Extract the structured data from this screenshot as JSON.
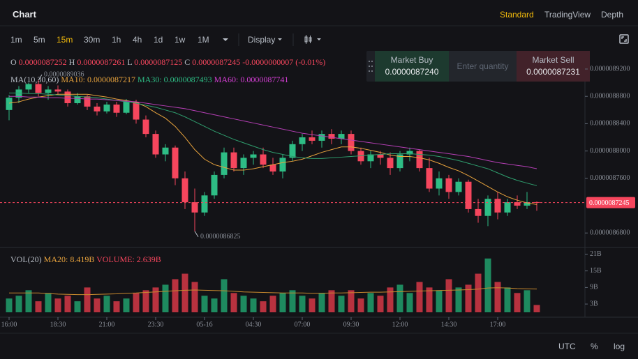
{
  "ui": {
    "title": "Chart",
    "views": [
      "Standard",
      "TradingView",
      "Depth"
    ],
    "intervals": [
      "1m",
      "5m",
      "15m",
      "30m",
      "1h",
      "4h",
      "1d",
      "1w",
      "1M"
    ],
    "display": "Display",
    "ohlc": [
      {
        "label": "O",
        "value": "0.0000087252"
      },
      {
        "label": "H",
        "value": "0.0000087261"
      },
      {
        "label": "L",
        "value": "0.0000087125"
      },
      {
        "label": "C",
        "value": "0.0000087245"
      }
    ],
    "change": "-0.0000000007 (-0.01%)",
    "ma_header": [
      "MA(10,30,60)",
      "MA10: 0.0000087217",
      "MA30: 0.0000087493",
      "MA60: 0.0000087741"
    ],
    "buy": {
      "label": "Market Buy",
      "price": "0.0000087240"
    },
    "quantity": "Enter quantity",
    "sell": {
      "label": "Market Sell",
      "price": "0.0000087231"
    },
    "vol_header": [
      "VOL(20)",
      "MA20: 8.419B",
      "VOLUME: 2.639B"
    ],
    "footer": [
      "UTC",
      "%",
      "log"
    ]
  },
  "chart_data": [
    {
      "type": "candlestick",
      "x": [
        "16:00",
        null,
        null,
        null,
        null,
        "18:30",
        null,
        null,
        null,
        null,
        "21:00",
        null,
        null,
        null,
        null,
        "23:30",
        null,
        null,
        null,
        null,
        "05-16",
        null,
        null,
        null,
        null,
        "04:30",
        null,
        null,
        null,
        null,
        "07:00",
        null,
        null,
        null,
        null,
        "09:30",
        null,
        null,
        null,
        null,
        "12:00",
        null,
        null,
        null,
        null,
        "14:30",
        null,
        null,
        null,
        null,
        "17:00",
        null,
        null,
        null,
        null
      ],
      "open": [
        8.86e-06,
        8.878e-06,
        8.89e-06,
        8.898e-06,
        8.885e-06,
        8.89e-06,
        8.887e-06,
        8.87e-06,
        8.88e-06,
        8.865e-06,
        8.858e-06,
        8.868e-06,
        8.856e-06,
        8.872e-06,
        8.846e-06,
        8.825e-06,
        8.795e-06,
        8.805e-06,
        8.76e-06,
        8.725e-06,
        8.71e-06,
        8.735e-06,
        8.765e-06,
        8.798e-06,
        8.775e-06,
        8.79e-06,
        8.795e-06,
        8.78e-06,
        8.77e-06,
        8.79e-06,
        8.81e-06,
        8.82e-06,
        8.815e-06,
        8.825e-06,
        8.818e-06,
        8.825e-06,
        8.8e-06,
        8.785e-06,
        8.795e-06,
        8.79e-06,
        8.775e-06,
        8.795e-06,
        8.8e-06,
        8.775e-06,
        8.745e-06,
        8.76e-06,
        8.74e-06,
        8.755e-06,
        8.715e-06,
        8.705e-06,
        8.73e-06,
        8.71e-06,
        8.725e-06,
        8.72e-06,
        8.7252e-06
      ],
      "high": [
        8.882e-06,
        8.895e-06,
        8.9e-06,
        8.9036e-06,
        8.895e-06,
        8.896e-06,
        8.89e-06,
        8.885e-06,
        8.882e-06,
        8.87e-06,
        8.872e-06,
        8.872e-06,
        8.876e-06,
        8.875e-06,
        8.852e-06,
        8.83e-06,
        8.81e-06,
        8.808e-06,
        8.77e-06,
        8.745e-06,
        8.74e-06,
        8.77e-06,
        8.805e-06,
        8.805e-06,
        8.795e-06,
        8.8e-06,
        8.805e-06,
        8.79e-06,
        8.795e-06,
        8.815e-06,
        8.825e-06,
        8.83e-06,
        8.83e-06,
        8.832e-06,
        8.83e-06,
        8.83e-06,
        8.805e-06,
        8.8e-06,
        8.8e-06,
        8.798e-06,
        8.8e-06,
        8.805e-06,
        8.802e-06,
        8.79e-06,
        8.77e-06,
        8.765e-06,
        8.76e-06,
        8.758e-06,
        8.73e-06,
        8.735e-06,
        8.74e-06,
        8.73e-06,
        8.735e-06,
        8.74e-06,
        8.7261e-06
      ],
      "low": [
        8.845e-06,
        8.87e-06,
        8.885e-06,
        8.88e-06,
        8.875e-06,
        8.882e-06,
        8.865e-06,
        8.868e-06,
        8.86e-06,
        8.852e-06,
        8.855e-06,
        8.85e-06,
        8.854e-06,
        8.84e-06,
        8.82e-06,
        8.79e-06,
        8.785e-06,
        8.75e-06,
        8.715e-06,
        8.6825e-06,
        8.705e-06,
        8.73e-06,
        8.76e-06,
        8.77e-06,
        8.765e-06,
        8.78e-06,
        8.775e-06,
        8.765e-06,
        8.76e-06,
        8.785e-06,
        8.8e-06,
        8.81e-06,
        8.805e-06,
        8.81e-06,
        8.81e-06,
        8.795e-06,
        8.78e-06,
        8.775e-06,
        8.78e-06,
        8.765e-06,
        8.77e-06,
        8.785e-06,
        8.77e-06,
        8.74e-06,
        8.735e-06,
        8.73e-06,
        8.735e-06,
        8.71e-06,
        8.695e-06,
        8.69e-06,
        8.7e-06,
        8.705e-06,
        8.715e-06,
        8.715e-06,
        8.7125e-06
      ],
      "close": [
        8.878e-06,
        8.89e-06,
        8.898e-06,
        8.885e-06,
        8.89e-06,
        8.887e-06,
        8.87e-06,
        8.88e-06,
        8.865e-06,
        8.858e-06,
        8.868e-06,
        8.856e-06,
        8.872e-06,
        8.846e-06,
        8.825e-06,
        8.795e-06,
        8.805e-06,
        8.76e-06,
        8.725e-06,
        8.71e-06,
        8.735e-06,
        8.765e-06,
        8.798e-06,
        8.775e-06,
        8.79e-06,
        8.795e-06,
        8.78e-06,
        8.77e-06,
        8.79e-06,
        8.81e-06,
        8.82e-06,
        8.815e-06,
        8.825e-06,
        8.818e-06,
        8.825e-06,
        8.8e-06,
        8.785e-06,
        8.795e-06,
        8.79e-06,
        8.775e-06,
        8.795e-06,
        8.8e-06,
        8.775e-06,
        8.745e-06,
        8.76e-06,
        8.74e-06,
        8.755e-06,
        8.715e-06,
        8.705e-06,
        8.73e-06,
        8.71e-06,
        8.725e-06,
        8.72e-06,
        8.7252e-06,
        8.7245e-06
      ],
      "up_color": "#2ebd85",
      "down_color": "#f6465d",
      "lines": [
        {
          "color": "#e8a33d",
          "values": [
            8.87e-06,
            8.872e-06,
            8.876e-06,
            8.879e-06,
            8.881e-06,
            8.883e-06,
            8.883e-06,
            8.883e-06,
            8.883e-06,
            8.881e-06,
            8.879e-06,
            8.876e-06,
            8.874e-06,
            8.871e-06,
            8.865e-06,
            8.856e-06,
            8.848e-06,
            8.836e-06,
            8.82e-06,
            8.802e-06,
            8.788e-06,
            8.78e-06,
            8.776e-06,
            8.772e-06,
            8.772e-06,
            8.774e-06,
            8.777e-06,
            8.78e-06,
            8.783e-06,
            8.785e-06,
            8.788e-06,
            8.793e-06,
            8.798e-06,
            8.802e-06,
            8.806e-06,
            8.806e-06,
            8.804e-06,
            8.801e-06,
            8.798e-06,
            8.794e-06,
            8.792e-06,
            8.792e-06,
            8.79e-06,
            8.787e-06,
            8.782e-06,
            8.776e-06,
            8.771e-06,
            8.764e-06,
            8.756e-06,
            8.748e-06,
            8.74e-06,
            8.733e-06,
            8.728e-06,
            8.724e-06,
            8.7217e-06
          ]
        },
        {
          "color": "#2f9e6e",
          "values": [
            8.885e-06,
            8.885e-06,
            8.884e-06,
            8.884e-06,
            8.883e-06,
            8.882e-06,
            8.881e-06,
            8.88e-06,
            8.879e-06,
            8.878e-06,
            8.876e-06,
            8.874e-06,
            8.872e-06,
            8.87e-06,
            8.867e-06,
            8.864e-06,
            8.86e-06,
            8.856e-06,
            8.85e-06,
            8.843e-06,
            8.836e-06,
            8.829e-06,
            8.823e-06,
            8.817e-06,
            8.812e-06,
            8.807e-06,
            8.802e-06,
            8.798e-06,
            8.795e-06,
            8.792e-06,
            8.79e-06,
            8.789e-06,
            8.789e-06,
            8.79e-06,
            8.791e-06,
            8.792e-06,
            8.793e-06,
            8.794e-06,
            8.795e-06,
            8.796e-06,
            8.796e-06,
            8.796e-06,
            8.795e-06,
            8.794e-06,
            8.792e-06,
            8.789e-06,
            8.786e-06,
            8.782e-06,
            8.778e-06,
            8.774e-06,
            8.768e-06,
            8.762e-06,
            8.757e-06,
            8.753e-06,
            8.7493e-06
          ]
        },
        {
          "color": "#b53fb5",
          "values": [
            8.88e-06,
            8.88e-06,
            8.879e-06,
            8.879e-06,
            8.878e-06,
            8.878e-06,
            8.877e-06,
            8.877e-06,
            8.876e-06,
            8.876e-06,
            8.875e-06,
            8.874e-06,
            8.873e-06,
            8.872e-06,
            8.87e-06,
            8.868e-06,
            8.866e-06,
            8.864e-06,
            8.862e-06,
            8.859e-06,
            8.856e-06,
            8.853e-06,
            8.85e-06,
            8.847e-06,
            8.844e-06,
            8.841e-06,
            8.838e-06,
            8.835e-06,
            8.832e-06,
            8.829e-06,
            8.826e-06,
            8.824e-06,
            8.822e-06,
            8.82e-06,
            8.818e-06,
            8.816e-06,
            8.814e-06,
            8.812e-06,
            8.81e-06,
            8.808e-06,
            8.806e-06,
            8.804e-06,
            8.802e-06,
            8.8e-06,
            8.798e-06,
            8.796e-06,
            8.794e-06,
            8.792e-06,
            8.789e-06,
            8.786e-06,
            8.783e-06,
            8.781e-06,
            8.779e-06,
            8.777e-06,
            8.7741e-06
          ]
        }
      ],
      "last_price": {
        "value": 8.7245e-06,
        "label": "0.0000087245"
      },
      "annotations": [
        {
          "label": "0.0000089036",
          "value": 8.9036e-06
        },
        {
          "label": "0.0000086825",
          "value": 8.6825e-06
        }
      ],
      "ylim": [
        8.6588e-06,
        8.9445e-06
      ],
      "yticks": [
        {
          "value": 8.68e-06,
          "label": "0.0000086800"
        },
        {
          "value": 8.76e-06,
          "label": "0.0000087600"
        },
        {
          "value": 8.8e-06,
          "label": "0.0000088000"
        },
        {
          "value": 8.84e-06,
          "label": "0.0000088400"
        },
        {
          "value": 8.88e-06,
          "label": "0.0000088800"
        },
        {
          "value": 8.92e-06,
          "label": "0.0000089200"
        }
      ],
      "grid": false
    },
    {
      "type": "bar",
      "values": [
        5,
        6,
        8,
        4,
        7,
        5,
        6,
        4,
        9,
        5,
        6,
        4,
        5,
        7,
        8,
        9,
        10,
        12,
        14,
        11,
        6,
        5,
        12,
        7,
        6,
        5,
        4,
        6,
        7,
        8,
        6,
        5,
        7,
        8,
        6,
        8,
        5,
        7,
        6,
        9,
        10,
        7,
        11,
        9,
        8,
        12,
        9,
        10,
        14,
        19.5,
        11,
        9,
        7,
        8,
        2.639
      ],
      "lines": [
        {
          "color": "#c98a2e",
          "values": [
            7,
            7,
            7,
            7,
            6.8,
            6.6,
            6.5,
            6.4,
            6.4,
            6.5,
            6.6,
            6.7,
            6.9,
            7,
            7.2,
            7.4,
            7.6,
            7.8,
            8,
            8.1,
            8,
            7.9,
            7.8,
            7.6,
            7.4,
            7.3,
            7.2,
            7.1,
            7,
            7,
            7,
            6.9,
            6.9,
            7,
            7,
            7.1,
            7.2,
            7.3,
            7.3,
            7.4,
            7.5,
            7.6,
            7.7,
            7.8,
            7.9,
            8,
            8.1,
            8.2,
            8.4,
            8.8,
            8.9,
            8.8,
            8.6,
            8.5,
            8.419
          ]
        }
      ],
      "up_color": "#1e8a5f",
      "down_color": "#b8323f",
      "ylim": [
        0,
        23.5
      ],
      "yticks": [
        {
          "value": 3,
          "label": "3B"
        },
        {
          "value": 9,
          "label": "9B"
        },
        {
          "value": 15,
          "label": "15B"
        },
        {
          "value": 21,
          "label": "21B"
        }
      ]
    }
  ]
}
